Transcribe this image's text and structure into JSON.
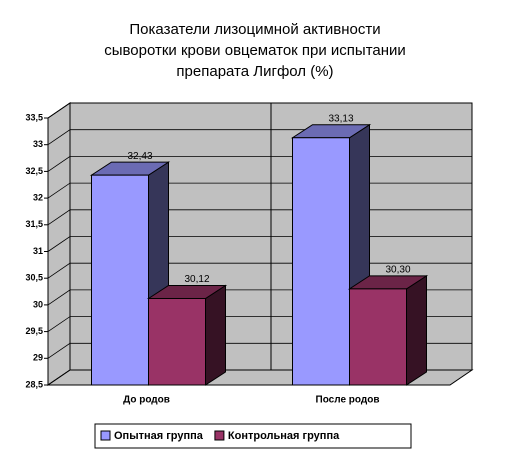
{
  "chart_data": {
    "type": "bar3d",
    "title": [
      "Показатели лизоцимной активности",
      "сыворотки крови овцематок при испытании",
      "препарата Лигфол (%)"
    ],
    "categories": [
      "До родов",
      "После родов"
    ],
    "series": [
      {
        "name": "Опытная группа",
        "color": "#9999ff",
        "values": [
          32.43,
          33.13
        ],
        "value_labels": [
          "32,43",
          "33,13"
        ]
      },
      {
        "name": "Контрольная группа",
        "color": "#993366",
        "values": [
          30.12,
          30.3
        ],
        "value_labels": [
          "30,12",
          "30,30"
        ]
      }
    ],
    "ylim": [
      28.5,
      33.5
    ],
    "yticks": [
      {
        "value": 28.5,
        "label": "28,5"
      },
      29,
      {
        "value": 29.5,
        "label": "29,5"
      },
      30,
      {
        "value": 30.5,
        "label": "30,5"
      },
      31,
      {
        "value": 31.5,
        "label": "31,5"
      },
      32,
      {
        "value": 32.5,
        "label": "32,5"
      },
      33,
      {
        "value": 33.5,
        "label": "33,5"
      }
    ],
    "grid": true,
    "legend": "bottom"
  }
}
